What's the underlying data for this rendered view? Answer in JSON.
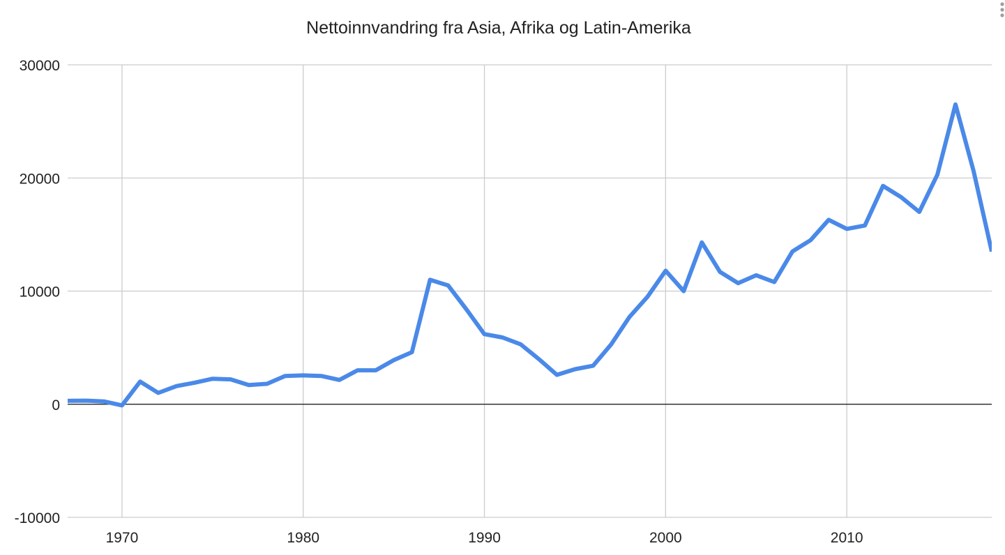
{
  "chart_data": {
    "type": "line",
    "title": "Nettoinnvandring fra Asia, Afrika og Latin-Amerika",
    "xlabel": "",
    "ylabel": "",
    "xlim": [
      1967,
      2018
    ],
    "ylim": [
      -10000,
      30000
    ],
    "x_ticks": [
      1970,
      1980,
      1990,
      2000,
      2010
    ],
    "y_ticks": [
      -10000,
      0,
      10000,
      20000,
      30000
    ],
    "grid": true,
    "legend": "none",
    "series": [
      {
        "color": "#4a89e8",
        "points": [
          [
            1967,
            300
          ],
          [
            1968,
            320
          ],
          [
            1969,
            250
          ],
          [
            1970,
            -100
          ],
          [
            1971,
            2000
          ],
          [
            1972,
            1000
          ],
          [
            1973,
            1600
          ],
          [
            1974,
            1900
          ],
          [
            1975,
            2250
          ],
          [
            1976,
            2200
          ],
          [
            1977,
            1700
          ],
          [
            1978,
            1800
          ],
          [
            1979,
            2500
          ],
          [
            1980,
            2550
          ],
          [
            1981,
            2500
          ],
          [
            1982,
            2150
          ],
          [
            1983,
            3000
          ],
          [
            1984,
            3000
          ],
          [
            1985,
            3900
          ],
          [
            1986,
            4600
          ],
          [
            1987,
            11000
          ],
          [
            1988,
            10500
          ],
          [
            1989,
            8400
          ],
          [
            1990,
            6200
          ],
          [
            1991,
            5900
          ],
          [
            1992,
            5300
          ],
          [
            1993,
            4000
          ],
          [
            1994,
            2600
          ],
          [
            1995,
            3100
          ],
          [
            1996,
            3400
          ],
          [
            1997,
            5300
          ],
          [
            1998,
            7700
          ],
          [
            1999,
            9500
          ],
          [
            2000,
            11800
          ],
          [
            2001,
            10000
          ],
          [
            2002,
            14300
          ],
          [
            2003,
            11700
          ],
          [
            2004,
            10700
          ],
          [
            2005,
            11400
          ],
          [
            2006,
            10800
          ],
          [
            2007,
            13500
          ],
          [
            2008,
            14500
          ],
          [
            2009,
            16300
          ],
          [
            2010,
            15500
          ],
          [
            2011,
            15800
          ],
          [
            2012,
            19300
          ],
          [
            2013,
            18300
          ],
          [
            2014,
            17000
          ],
          [
            2015,
            20300
          ],
          [
            2016,
            26500
          ],
          [
            2017,
            20600
          ],
          [
            2018,
            13500
          ]
        ]
      }
    ]
  }
}
